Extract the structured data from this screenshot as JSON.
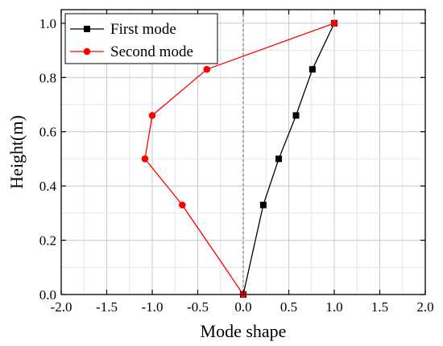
{
  "chart_data": {
    "type": "line",
    "xlabel": "Mode shape",
    "ylabel": "Height(m)",
    "xlim": [
      -2.0,
      2.0
    ],
    "ylim": [
      0.0,
      1.05
    ],
    "xticks": [
      "-2.0",
      "-1.5",
      "-1.0",
      "-0.5",
      "0.0",
      "0.5",
      "1.0",
      "1.5",
      "2.0"
    ],
    "yticks": [
      "0.0",
      "0.2",
      "0.4",
      "0.6",
      "0.8",
      "1.0"
    ],
    "xtick_values": [
      -2.0,
      -1.5,
      -1.0,
      -0.5,
      0.0,
      0.5,
      1.0,
      1.5,
      2.0
    ],
    "ytick_values": [
      0.0,
      0.2,
      0.4,
      0.6,
      0.8,
      1.0
    ],
    "grid": true,
    "legend_position": "top-left",
    "series": [
      {
        "name": "First mode",
        "color": "#000000",
        "marker": "square",
        "x": [
          0.0,
          0.22,
          0.39,
          0.58,
          0.76,
          1.0
        ],
        "y": [
          0.0,
          0.33,
          0.5,
          0.66,
          0.83,
          1.0
        ]
      },
      {
        "name": "Second mode",
        "color": "#ff0000",
        "marker": "circle",
        "x": [
          0.0,
          -0.67,
          -1.08,
          -1.0,
          -0.4,
          1.0
        ],
        "y": [
          0.0,
          0.33,
          0.5,
          0.66,
          0.83,
          1.0
        ]
      }
    ]
  }
}
